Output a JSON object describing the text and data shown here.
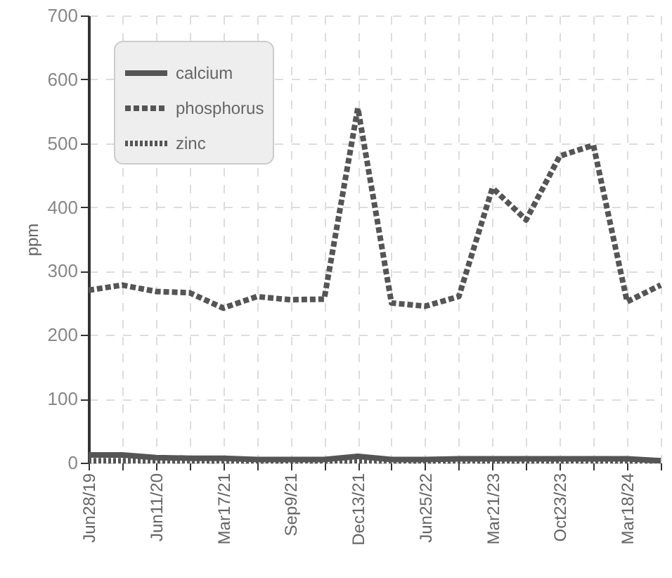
{
  "chart_data": {
    "type": "line",
    "ylabel": "ppm",
    "categories": [
      "Jun28/19",
      null,
      "Jun11/20",
      null,
      "Mar17/21",
      null,
      "Sep9/21",
      null,
      "Dec13/21",
      null,
      "Jun25/22",
      null,
      "Mar21/23",
      null,
      "Oct23/23",
      null,
      "Mar18/24",
      null
    ],
    "series": [
      {
        "name": "calcium",
        "color": "#555555",
        "line_style": "solid",
        "values": [
          12,
          12,
          8,
          7,
          7,
          5,
          5,
          5,
          10,
          5,
          5,
          6,
          6,
          6,
          6,
          6,
          6,
          3
        ]
      },
      {
        "name": "phosphorus",
        "color": "#555555",
        "line_style": "dashed",
        "values": [
          270,
          278,
          268,
          266,
          242,
          260,
          255,
          256,
          555,
          250,
          245,
          260,
          430,
          380,
          480,
          497,
          252,
          278
        ]
      },
      {
        "name": "zinc",
        "color": "#555555",
        "line_style": "dotted",
        "values": [
          3,
          3,
          3,
          3,
          3,
          3,
          3,
          3,
          3,
          3,
          3,
          3,
          3,
          3,
          3,
          3,
          3,
          3
        ]
      }
    ],
    "ylim": [
      0,
      700
    ],
    "yticks": [
      0,
      100,
      200,
      300,
      400,
      500,
      600,
      700
    ],
    "grid": true,
    "legend": "top left"
  }
}
